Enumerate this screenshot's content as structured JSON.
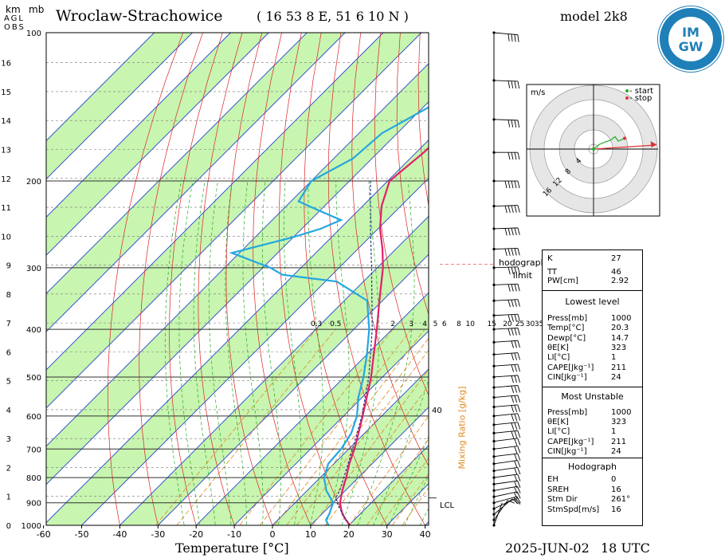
{
  "header": {
    "station": "Wroclaw-Strachowice",
    "coords": "( 16 53 8 E, 51 6 10 N )",
    "model": "model 2k8"
  },
  "axes": {
    "km_label": "km",
    "mb_label": "mb",
    "agl_label": "AGL",
    "obs_label": "OBS",
    "x_title": "Temperature [°C]",
    "x_ticks": [
      "-60",
      "-50",
      "-40",
      "-30",
      "-20",
      "-10",
      "0",
      "10",
      "20",
      "30",
      "40"
    ],
    "p_ticks": [
      "100",
      "200",
      "300",
      "400",
      "500",
      "600",
      "700",
      "800",
      "900",
      "1000"
    ],
    "km_ticks": [
      "16",
      "15",
      "14",
      "13",
      "12",
      "11",
      "10",
      "9",
      "8",
      "7",
      "6",
      "5",
      "4",
      "3",
      "2",
      "1",
      "0"
    ],
    "mixing_ratio_title": "Mixing Ratio [g/kg]",
    "mixing_ratio_ticks": [
      "0.3",
      "0.5",
      "2",
      "3",
      "4",
      "5",
      "6",
      "8",
      "10",
      "15",
      "20",
      "25",
      "30",
      "35"
    ],
    "mixing_ratio_extra": "40",
    "lcl_label": "LCL",
    "hodo_limit_label": "hodograph\nlimit"
  },
  "footer": {
    "date": "2025-JUN-02",
    "time": "18 UTC"
  },
  "logo": {
    "top": "IM",
    "bottom": "GW",
    "color": "#1f7fb8"
  },
  "hodograph": {
    "units": "m/s",
    "legend_start": "- start",
    "legend_stop": "- stop",
    "ring_labels": [
      "4",
      "8",
      "12",
      "16"
    ],
    "start_color": "#22aa22",
    "stop_color": "#dd3333",
    "trace": [
      [
        0,
        0
      ],
      [
        1.5,
        1.2
      ],
      [
        3,
        1.8
      ],
      [
        4.2,
        2.2
      ],
      [
        5.4,
        3.1
      ],
      [
        6.2,
        2.0
      ],
      [
        7.8,
        2.7
      ],
      [
        15.5,
        1.0
      ]
    ]
  },
  "indices": {
    "k_label": "K",
    "k_value": "27",
    "tt_label": "TT",
    "tt_value": "46",
    "pw_label": "PW[cm]",
    "pw_value": "2.92",
    "lowest_title": "Lowest level",
    "lowest": [
      {
        "label": "Press[mb]",
        "value": "1000"
      },
      {
        "label": "Temp[°C]",
        "value": "20.3"
      },
      {
        "label": "Dewp[°C]",
        "value": "14.7"
      },
      {
        "label": "θE[K]",
        "value": "323"
      },
      {
        "label": "LI[°C]",
        "value": "1"
      },
      {
        "label": "CAPE[Jkg⁻¹]",
        "value": "211"
      },
      {
        "label": "CIN[Jkg⁻¹]",
        "value": "24"
      }
    ],
    "mu_title": "Most Unstable",
    "mu": [
      {
        "label": "Press[mb]",
        "value": "1000"
      },
      {
        "label": "θE[K]",
        "value": "323"
      },
      {
        "label": "LI[°C]",
        "value": "1"
      },
      {
        "label": "CAPE[Jkg⁻¹]",
        "value": "211"
      },
      {
        "label": "CIN[Jkg⁻¹]",
        "value": "24"
      }
    ],
    "hodo_title": "Hodograph",
    "hodo": [
      {
        "label": "EH",
        "value": "0"
      },
      {
        "label": "SREH",
        "value": "16"
      },
      {
        "label": "Stm Dir",
        "value": "261°"
      },
      {
        "label": "StmSpd[m/s]",
        "value": "16"
      }
    ]
  },
  "colors": {
    "temperature": "#e0206a",
    "dewpoint": "#22a7e0",
    "parcel": "#1f3a8a",
    "isotherm_band": "#c8f5b0",
    "isotherm": "#2244cc",
    "dry_adiabat": "#dd2222",
    "moist_adiabat": "#22aa22",
    "mixing_ratio": "#e08a20"
  },
  "chart_data": {
    "type": "line",
    "chart_kind": "skew-T log-P sounding",
    "pressure_axis": "log",
    "p_range_mb": [
      1000,
      100
    ],
    "t_range_c": [
      -60,
      40
    ],
    "series": [
      {
        "name": "Temperature",
        "p_mb": [
          1000,
          975,
          950,
          925,
          900,
          850,
          800,
          750,
          700,
          650,
          600,
          550,
          500,
          450,
          400,
          350,
          300,
          275,
          250,
          225,
          200,
          175,
          150,
          125,
          100
        ],
        "t_c": [
          20.3,
          17.8,
          15.5,
          13.6,
          11.8,
          9.2,
          6.8,
          4.0,
          1.5,
          -1.6,
          -5.0,
          -8.8,
          -13.0,
          -18.2,
          -24.0,
          -30.8,
          -38.5,
          -43.5,
          -49.5,
          -55.0,
          -59.5,
          -58.0,
          -57.5,
          -58.5,
          -60.0
        ]
      },
      {
        "name": "Dewpoint",
        "p_mb": [
          1000,
          975,
          950,
          925,
          900,
          850,
          800,
          750,
          700,
          650,
          600,
          550,
          500,
          450,
          400,
          350,
          320,
          310,
          300,
          280,
          260,
          250,
          240,
          230,
          220,
          200,
          180,
          160,
          140,
          120,
          100
        ],
        "t_c": [
          14.7,
          12.6,
          12.0,
          11.0,
          10.0,
          5.0,
          1.0,
          -1.5,
          -2.0,
          -3.5,
          -6.5,
          -11.0,
          -15.0,
          -20.0,
          -26.0,
          -34.0,
          -47.0,
          -63.0,
          -68.0,
          -82.0,
          -70.0,
          -65.0,
          -62.0,
          -70.0,
          -78.0,
          -80.0,
          -75.0,
          -74.0,
          -68.0,
          -63.0,
          -60.0
        ]
      },
      {
        "name": "Parcel",
        "p_mb": [
          1000,
          950,
          900,
          880,
          850,
          800,
          700,
          600,
          500,
          400,
          300,
          250,
          200
        ],
        "t_c": [
          20.3,
          15.5,
          11.0,
          9.4,
          8.5,
          6.2,
          1.0,
          -5.2,
          -13.6,
          -25.2,
          -41.5,
          -52.0,
          -64.5
        ]
      }
    ],
    "lcl_p_mb": 880,
    "hodograph_limit_p_mb": 295,
    "wind_barbs": [
      {
        "p": 1000,
        "dir": 200,
        "spd": 4
      },
      {
        "p": 975,
        "dir": 215,
        "spd": 6
      },
      {
        "p": 950,
        "dir": 230,
        "spd": 8
      },
      {
        "p": 925,
        "dir": 245,
        "spd": 9
      },
      {
        "p": 900,
        "dir": 255,
        "spd": 10
      },
      {
        "p": 875,
        "dir": 258,
        "spd": 10
      },
      {
        "p": 850,
        "dir": 260,
        "spd": 11
      },
      {
        "p": 825,
        "dir": 262,
        "spd": 11
      },
      {
        "p": 800,
        "dir": 262,
        "spd": 12
      },
      {
        "p": 775,
        "dir": 262,
        "spd": 12
      },
      {
        "p": 750,
        "dir": 262,
        "spd": 13
      },
      {
        "p": 725,
        "dir": 263,
        "spd": 13
      },
      {
        "p": 700,
        "dir": 263,
        "spd": 14
      },
      {
        "p": 675,
        "dir": 263,
        "spd": 14
      },
      {
        "p": 650,
        "dir": 264,
        "spd": 15
      },
      {
        "p": 625,
        "dir": 264,
        "spd": 15
      },
      {
        "p": 600,
        "dir": 264,
        "spd": 16
      },
      {
        "p": 575,
        "dir": 265,
        "spd": 16
      },
      {
        "p": 550,
        "dir": 265,
        "spd": 17
      },
      {
        "p": 525,
        "dir": 265,
        "spd": 17
      },
      {
        "p": 500,
        "dir": 266,
        "spd": 18
      },
      {
        "p": 475,
        "dir": 266,
        "spd": 18
      },
      {
        "p": 450,
        "dir": 266,
        "spd": 19
      },
      {
        "p": 425,
        "dir": 266,
        "spd": 19
      },
      {
        "p": 400,
        "dir": 267,
        "spd": 20
      },
      {
        "p": 375,
        "dir": 267,
        "spd": 21
      },
      {
        "p": 350,
        "dir": 267,
        "spd": 22
      },
      {
        "p": 325,
        "dir": 268,
        "spd": 23
      },
      {
        "p": 300,
        "dir": 268,
        "spd": 24
      },
      {
        "p": 275,
        "dir": 268,
        "spd": 25
      },
      {
        "p": 250,
        "dir": 268,
        "spd": 26
      },
      {
        "p": 225,
        "dir": 268,
        "spd": 26
      },
      {
        "p": 200,
        "dir": 270,
        "spd": 25
      },
      {
        "p": 175,
        "dir": 270,
        "spd": 24
      },
      {
        "p": 150,
        "dir": 272,
        "spd": 22
      },
      {
        "p": 125,
        "dir": 272,
        "spd": 21
      },
      {
        "p": 100,
        "dir": 275,
        "spd": 20
      }
    ]
  }
}
